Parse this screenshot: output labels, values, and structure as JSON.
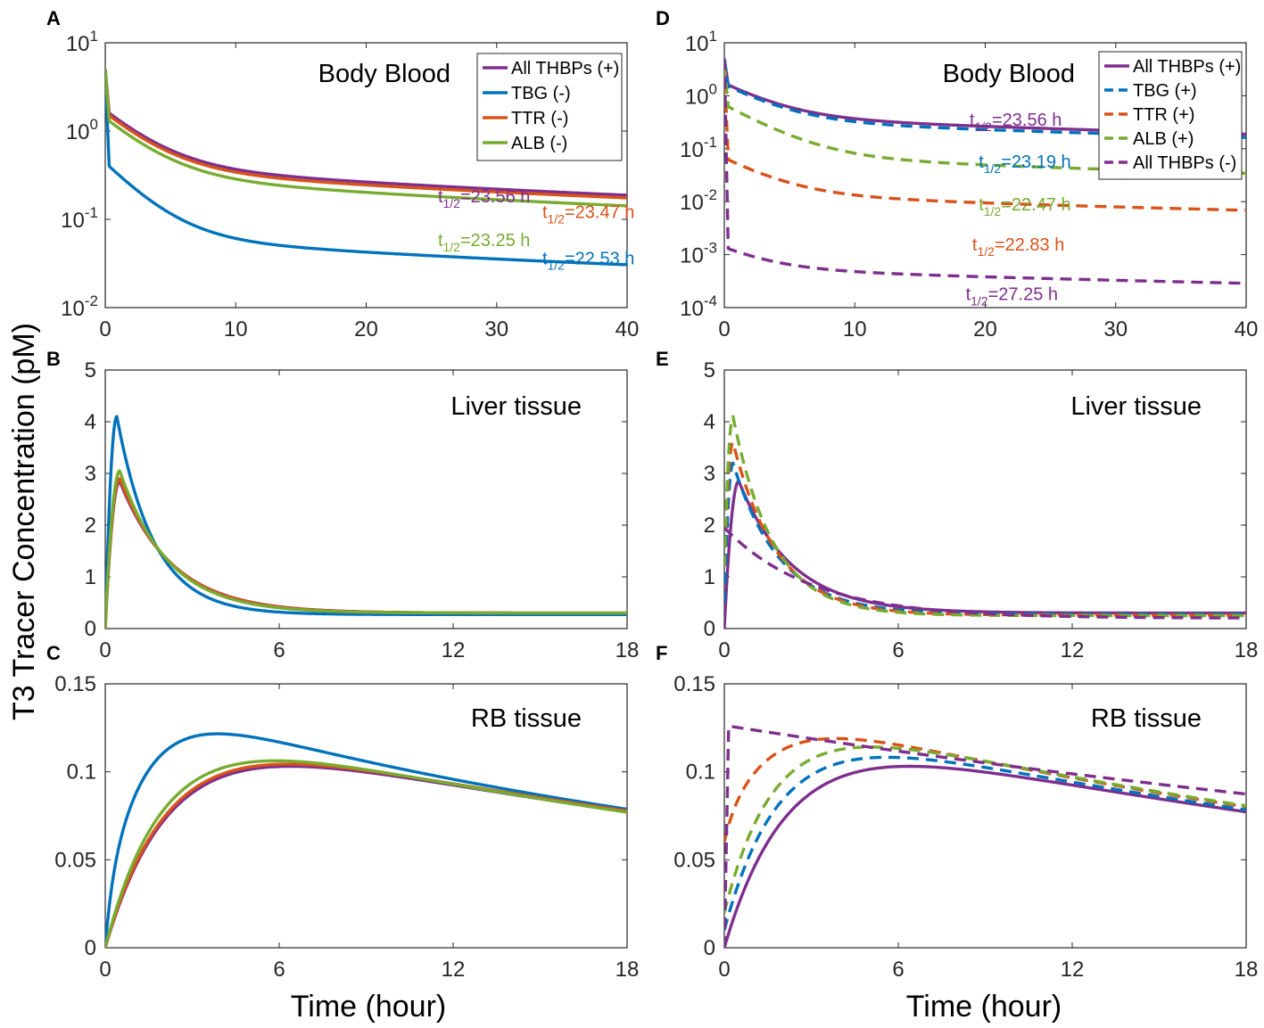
{
  "figure": {
    "ylabel": "T3 Tracer Concentration (pM)",
    "xlabel": "Time (hour)"
  },
  "colors": {
    "purple": "#7E2F8E",
    "blue": "#0072BD",
    "orange": "#D95319",
    "green": "#77AC30"
  },
  "chart_data": [
    {
      "id": "A",
      "letter": "A",
      "type": "line",
      "title": "Body Blood",
      "yscale": "log",
      "ylim": [
        0.01,
        10
      ],
      "xlim": [
        0,
        40
      ],
      "xticks": [
        0,
        10,
        20,
        30,
        40
      ],
      "yticks": [
        {
          "base": "10",
          "exp": "-2",
          "v": 0.01
        },
        {
          "base": "10",
          "exp": "-1",
          "v": 0.1
        },
        {
          "base": "10",
          "exp": "0",
          "v": 1
        },
        {
          "base": "10",
          "exp": "1",
          "v": 10
        }
      ],
      "legend": "top-right",
      "series": [
        {
          "name": "All THBPs (+)",
          "color": "purple",
          "style": "solid",
          "shape": "blood",
          "params": {
            "y0": 5,
            "ya": 1.6,
            "a": [
              1.0,
              0.25,
              0.078
            ],
            "k": [
              0.33,
              0.0294
            ]
          }
        },
        {
          "name": "TBG (-)",
          "color": "blue",
          "style": "solid",
          "shape": "blood",
          "params": {
            "y0": 5,
            "ya": 0.4,
            "a": [
              0.36,
              0.05,
              0.018
            ],
            "k": [
              0.37,
              0.0308
            ]
          }
        },
        {
          "name": "TTR (-)",
          "color": "orange",
          "style": "solid",
          "shape": "blood",
          "params": {
            "y0": 5,
            "ya": 1.5,
            "a": [
              0.95,
              0.23,
              0.075
            ],
            "k": [
              0.33,
              0.0295
            ]
          }
        },
        {
          "name": "ALB (-)",
          "color": "green",
          "style": "solid",
          "shape": "blood",
          "params": {
            "y0": 5,
            "ya": 1.3,
            "a": [
              0.85,
              0.2,
              0.06
            ],
            "k": [
              0.33,
              0.0298
            ]
          }
        }
      ],
      "annotations": [
        {
          "base": "t",
          "sub": "1/2",
          "value": "=23.56 h",
          "color": "purple",
          "x": 25.5,
          "y": 0.155
        },
        {
          "base": "t",
          "sub": "1/2",
          "value": "=23.47 h",
          "color": "orange",
          "x": 33.5,
          "y": 0.104
        },
        {
          "base": "t",
          "sub": "1/2",
          "value": "=23.25 h",
          "color": "green",
          "x": 25.5,
          "y": 0.05
        },
        {
          "base": "t",
          "sub": "1/2",
          "value": "=22.53 h",
          "color": "blue",
          "x": 33.5,
          "y": 0.031
        }
      ]
    },
    {
      "id": "B",
      "letter": "B",
      "type": "line",
      "title": "Liver tissue",
      "yscale": "linear",
      "ylim": [
        0,
        5
      ],
      "xlim": [
        0,
        18
      ],
      "xticks": [
        0,
        6,
        12,
        18
      ],
      "yticks": [
        0,
        1,
        2,
        3,
        4,
        5
      ],
      "series": [
        {
          "name": "All THBPs (+)",
          "color": "purple",
          "style": "solid",
          "shape": "liver",
          "params": {
            "y0": 0,
            "peak": 2.85,
            "tp": 0.5,
            "k": 0.55,
            "c": 0.3
          }
        },
        {
          "name": "TBG (-)",
          "color": "blue",
          "style": "solid",
          "shape": "liver",
          "params": {
            "y0": 0,
            "peak": 4.1,
            "tp": 0.4,
            "k": 0.78,
            "c": 0.27
          }
        },
        {
          "name": "TTR (-)",
          "color": "orange",
          "style": "solid",
          "shape": "liver",
          "params": {
            "y0": 0,
            "peak": 2.9,
            "tp": 0.5,
            "k": 0.56,
            "c": 0.3
          }
        },
        {
          "name": "ALB (-)",
          "color": "green",
          "style": "solid",
          "shape": "liver",
          "params": {
            "y0": 0,
            "peak": 3.05,
            "tp": 0.5,
            "k": 0.6,
            "c": 0.3
          }
        }
      ]
    },
    {
      "id": "C",
      "letter": "C",
      "type": "line",
      "title": "RB tissue",
      "yscale": "linear",
      "ylim": [
        0,
        0.15
      ],
      "xlim": [
        0,
        18
      ],
      "xticks": [
        0,
        6,
        12,
        18
      ],
      "yticks": [
        0,
        0.05,
        0.1,
        0.15
      ],
      "series": [
        {
          "name": "All THBPs (+)",
          "color": "purple",
          "style": "solid",
          "shape": "rb",
          "params": {
            "y0": 0,
            "A": 0.135,
            "k": 0.45,
            "d": 0.031
          }
        },
        {
          "name": "TBG (-)",
          "color": "blue",
          "style": "solid",
          "shape": "rb",
          "params": {
            "y0": 0,
            "A": 0.14,
            "k": 0.7,
            "d": 0.032,
            "boost": 0.028,
            "kb": 4
          }
        },
        {
          "name": "TTR (-)",
          "color": "orange",
          "style": "solid",
          "shape": "rb",
          "params": {
            "y0": 0,
            "A": 0.136,
            "k": 0.46,
            "d": 0.031
          }
        },
        {
          "name": "ALB (-)",
          "color": "green",
          "style": "solid",
          "shape": "rb",
          "params": {
            "y0": 0,
            "A": 0.137,
            "k": 0.5,
            "d": 0.032
          }
        }
      ]
    },
    {
      "id": "D",
      "letter": "D",
      "type": "line",
      "title": "Body Blood",
      "yscale": "log",
      "ylim": [
        0.0001,
        10
      ],
      "xlim": [
        0,
        40
      ],
      "xticks": [
        0,
        10,
        20,
        30,
        40
      ],
      "yticks": [
        {
          "base": "10",
          "exp": "-4",
          "v": 0.0001
        },
        {
          "base": "10",
          "exp": "-3",
          "v": 0.001
        },
        {
          "base": "10",
          "exp": "-2",
          "v": 0.01
        },
        {
          "base": "10",
          "exp": "-1",
          "v": 0.1
        },
        {
          "base": "10",
          "exp": "0",
          "v": 1
        },
        {
          "base": "10",
          "exp": "1",
          "v": 10
        }
      ],
      "legend": "top-right",
      "series": [
        {
          "name": "All THBPs (+)",
          "color": "purple",
          "style": "solid",
          "shape": "blood",
          "params": {
            "y0": 5,
            "ya": 1.6,
            "a": [
              1.0,
              0.25,
              0.078
            ],
            "k": [
              0.33,
              0.0294
            ]
          }
        },
        {
          "name": "TBG (+)",
          "color": "blue",
          "style": "dashed",
          "shape": "blood",
          "params": {
            "y0": 5,
            "ya": 1.5,
            "a": [
              0.9,
              0.2,
              0.066
            ],
            "k": [
              0.33,
              0.0299
            ]
          }
        },
        {
          "name": "TTR (+)",
          "color": "orange",
          "style": "dashed",
          "shape": "blood",
          "params": {
            "y0": 4,
            "ya": 0.062,
            "a": [
              0.045,
              0.0095,
              0.0036
            ],
            "k": [
              0.33,
              0.0303
            ]
          }
        },
        {
          "name": "ALB (+)",
          "color": "green",
          "style": "dashed",
          "shape": "blood",
          "params": {
            "y0": 4,
            "ya": 0.62,
            "a": [
              0.42,
              0.044,
              0.0135
            ],
            "k": [
              0.33,
              0.0308
            ]
          }
        },
        {
          "name": "All THBPs (-)",
          "color": "purple",
          "style": "dashed",
          "shape": "blood",
          "params": {
            "y0": 5,
            "ya": 0.0013,
            "a": [
              0.0012,
              0.0006,
              0.00023
            ],
            "k": [
              0.33,
              0.0254
            ]
          }
        }
      ],
      "annotations": [
        {
          "base": "t",
          "sub": "1/2",
          "value": "=23.56 h",
          "color": "purple",
          "x": 18.8,
          "y": 0.27
        },
        {
          "base": "t",
          "sub": "1/2",
          "value": "=23.19 h",
          "color": "blue",
          "x": 19.5,
          "y": 0.044
        },
        {
          "base": "t",
          "sub": "1/2",
          "value": "=22.47 h",
          "color": "green",
          "x": 19.5,
          "y": 0.0068
        },
        {
          "base": "t",
          "sub": "1/2",
          "value": "=22.83 h",
          "color": "orange",
          "x": 19,
          "y": 0.0012
        },
        {
          "base": "t",
          "sub": "1/2",
          "value": "=27.25 h",
          "color": "purple",
          "x": 18.5,
          "y": 0.00014
        }
      ]
    },
    {
      "id": "E",
      "letter": "E",
      "type": "line",
      "title": "Liver tissue",
      "yscale": "linear",
      "ylim": [
        0,
        5
      ],
      "xlim": [
        0,
        18
      ],
      "xticks": [
        0,
        6,
        12,
        18
      ],
      "yticks": [
        0,
        1,
        2,
        3,
        4,
        5
      ],
      "series": [
        {
          "name": "All THBPs (+)",
          "color": "purple",
          "style": "solid",
          "shape": "liver",
          "params": {
            "y0": 0,
            "peak": 2.85,
            "tp": 0.5,
            "k": 0.55,
            "c": 0.3
          }
        },
        {
          "name": "TBG (+)",
          "color": "blue",
          "style": "dashed",
          "shape": "liver",
          "params": {
            "y0": 0.5,
            "peak": 3.2,
            "tp": 0.3,
            "k": 0.62,
            "c": 0.28
          }
        },
        {
          "name": "TTR (+)",
          "color": "orange",
          "style": "dashed",
          "shape": "liver",
          "params": {
            "y0": 1.2,
            "peak": 3.6,
            "tp": 0.3,
            "k": 0.66,
            "c": 0.26
          }
        },
        {
          "name": "ALB (+)",
          "color": "green",
          "style": "dashed",
          "shape": "liver",
          "params": {
            "y0": 1.2,
            "peak": 4.1,
            "tp": 0.3,
            "k": 0.72,
            "c": 0.25
          }
        },
        {
          "name": "All THBPs (-)",
          "color": "purple",
          "style": "dashed",
          "shape": "liver",
          "params": {
            "y0": 1.95,
            "peak": 1.95,
            "tp": 0,
            "k": 0.33,
            "c": 0.2
          }
        }
      ]
    },
    {
      "id": "F",
      "letter": "F",
      "type": "line",
      "title": "RB tissue",
      "yscale": "linear",
      "ylim": [
        0,
        0.15
      ],
      "xlim": [
        0,
        18
      ],
      "xticks": [
        0,
        6,
        12,
        18
      ],
      "yticks": [
        0,
        0.05,
        0.1,
        0.15
      ],
      "series": [
        {
          "name": "All THBPs (+)",
          "color": "purple",
          "style": "solid",
          "shape": "rb",
          "params": {
            "y0": 0,
            "A": 0.135,
            "k": 0.45,
            "d": 0.031
          }
        },
        {
          "name": "TBG (+)",
          "color": "blue",
          "style": "dashed",
          "shape": "rb",
          "params": {
            "y0": 0.01,
            "A": 0.137,
            "k": 0.52,
            "d": 0.031
          }
        },
        {
          "name": "TTR (+)",
          "color": "orange",
          "style": "dashed",
          "shape": "rb",
          "params": {
            "y0": 0.06,
            "A": 0.14,
            "k": 0.6,
            "d": 0.031,
            "boost": 0.01,
            "kb": 3
          }
        },
        {
          "name": "ALB (+)",
          "color": "green",
          "style": "dashed",
          "shape": "rb",
          "params": {
            "y0": 0.02,
            "A": 0.141,
            "k": 0.58,
            "d": 0.031
          }
        },
        {
          "name": "All THBPs (-)",
          "color": "purple",
          "style": "dashed",
          "shape": "rbflat",
          "params": {
            "y0": 0.126,
            "d": 0.0205
          }
        }
      ]
    }
  ]
}
